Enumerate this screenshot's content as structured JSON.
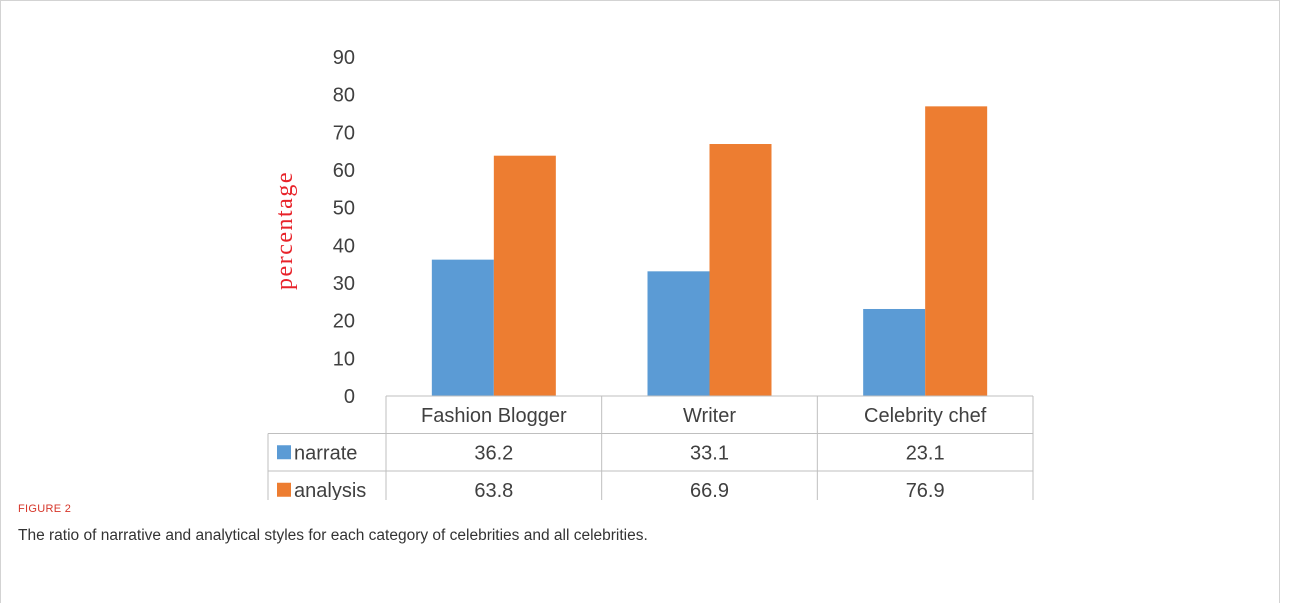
{
  "colors": {
    "narrate": "#5b9bd5",
    "analysis": "#ed7d31",
    "ylabel": "#e8232a",
    "grid": "#bfbfbf"
  },
  "chart_data": {
    "type": "bar",
    "title": "",
    "xlabel": "",
    "ylabel": "percentage",
    "ylim": [
      0,
      90
    ],
    "yticks": [
      0,
      10,
      20,
      30,
      40,
      50,
      60,
      70,
      80,
      90
    ],
    "grid": false,
    "legend": "table-left",
    "categories": [
      "Fashion Blogger",
      "Writer",
      "Celebrity chef"
    ],
    "series": [
      {
        "name": "narrate",
        "values": [
          36.2,
          33.1,
          23.1
        ],
        "color": "#5b9bd5"
      },
      {
        "name": "analysis",
        "values": [
          63.8,
          66.9,
          76.9
        ],
        "color": "#ed7d31"
      }
    ],
    "data_table": [
      [
        "36.2",
        "33.1",
        "23.1"
      ],
      [
        "63.8",
        "66.9",
        "76.9"
      ]
    ]
  },
  "caption": {
    "label": "FIGURE 2",
    "text": "The ratio of narrative and analytical styles for each category of celebrities and all celebrities."
  }
}
